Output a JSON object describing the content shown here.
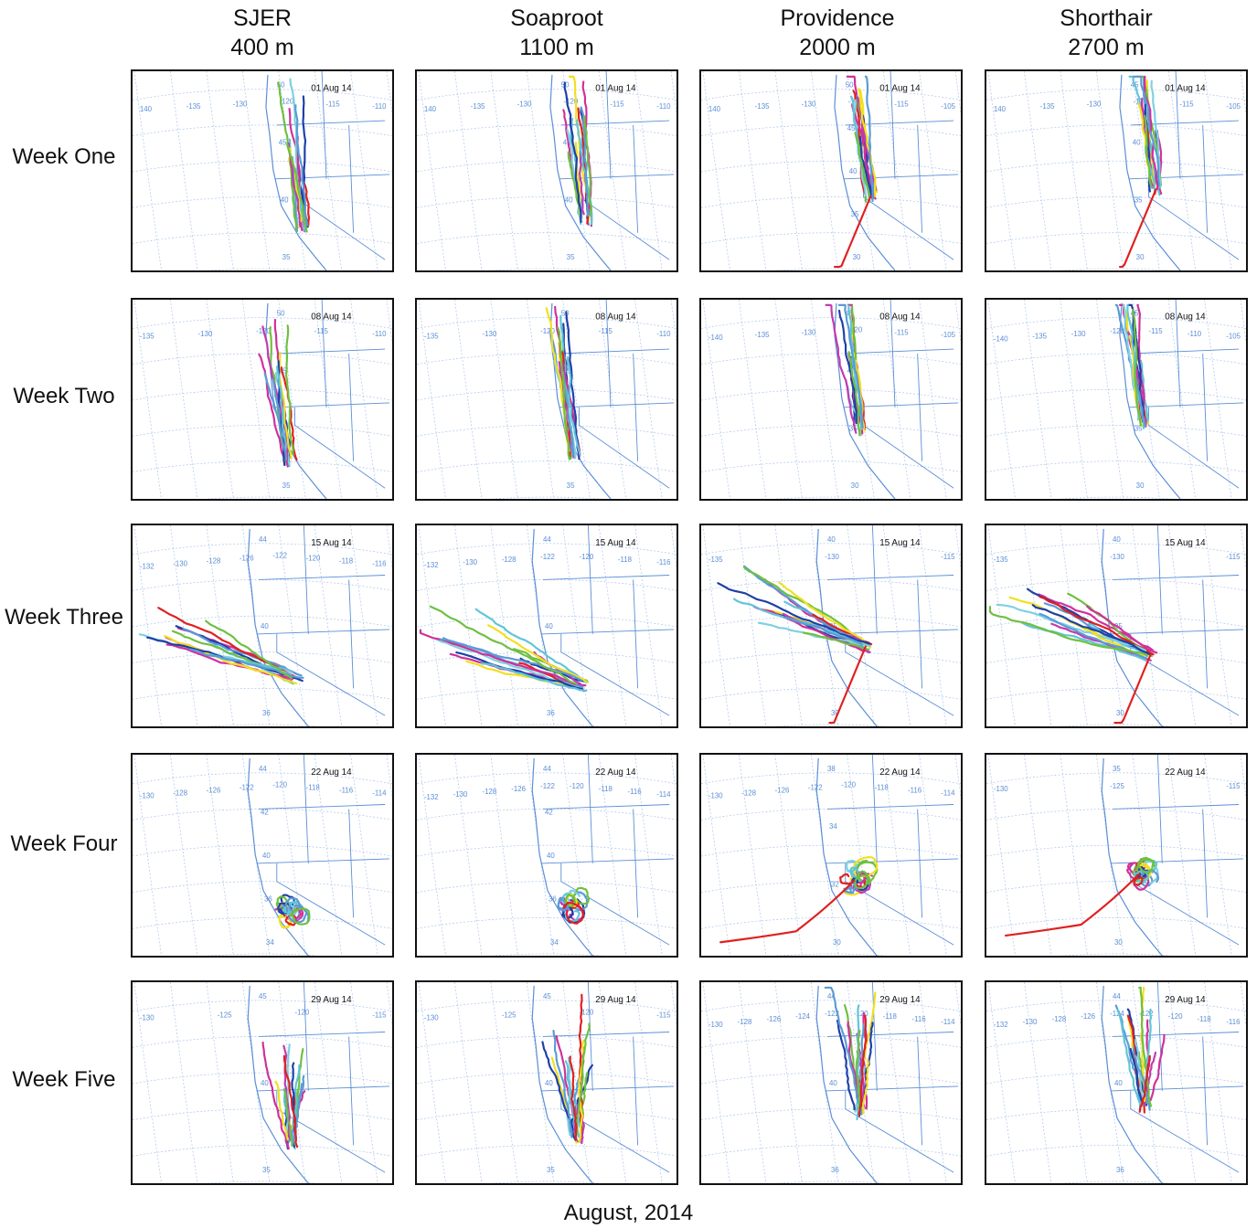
{
  "sites": [
    {
      "name": "SJER",
      "elevation": "400 m"
    },
    {
      "name": "Soaproot",
      "elevation": "1100 m"
    },
    {
      "name": "Providence",
      "elevation": "2000 m"
    },
    {
      "name": "Shorthair",
      "elevation": "2700 m"
    }
  ],
  "weeks": [
    {
      "label": "Week One",
      "date": "01 Aug 14"
    },
    {
      "label": "Week Two",
      "date": "08 Aug 14"
    },
    {
      "label": "Week Three",
      "date": "15 Aug 14"
    },
    {
      "label": "Week Four",
      "date": "22 Aug 14"
    },
    {
      "label": "Week Five",
      "date": "29 Aug 14"
    }
  ],
  "footer": "August, 2014",
  "colors": {
    "grid": "#a9c3ea",
    "coast": "#5b8ed6",
    "trajectories": [
      "#d0309a",
      "#f0e020",
      "#1e3fa8",
      "#60c4d8",
      "#5b9bd5",
      "#6ec040",
      "#e02020",
      "#7fd0e0",
      "#c23ab0"
    ]
  },
  "panel_labels": [
    [
      "01 Aug 14",
      "01 Aug 14",
      "01 Aug 14",
      "01 Aug 14"
    ],
    [
      "08 Aug 14",
      "08 Aug 14",
      "08 Aug 14",
      "08 Aug 14"
    ],
    [
      "15 Aug 14",
      "15 Aug 14",
      "15 Aug 14",
      "15 Aug 14"
    ],
    [
      "22 Aug 14",
      "22 Aug 14",
      "22 Aug 14",
      "22 Aug 14"
    ],
    [
      "29 Aug 14",
      "29 Aug 14",
      "29 Aug 14",
      "29 Aug 14"
    ]
  ],
  "tick_labels": [
    [
      [
        "140",
        "-135",
        "-130",
        "-120",
        "-115",
        "-110",
        "50",
        "45",
        "40",
        "35"
      ],
      [
        "140",
        "-135",
        "-130",
        "-120",
        "-115",
        "-110",
        "50",
        "45",
        "40",
        "35"
      ],
      [
        "140",
        "-135",
        "-130",
        "-120",
        "-115",
        "-105",
        "50",
        "45",
        "40",
        "35",
        "30"
      ],
      [
        "140",
        "-135",
        "-130",
        "-120",
        "-115",
        "-105",
        "45",
        "40",
        "35",
        "30"
      ]
    ],
    [
      [
        "-135",
        "-130",
        "-120",
        "-115",
        "-110",
        "50",
        "45",
        "40",
        "35"
      ],
      [
        "-135",
        "-130",
        "-120",
        "-115",
        "-110",
        "50",
        "45",
        "40",
        "35"
      ],
      [
        "-140",
        "-135",
        "-130",
        "-120",
        "-115",
        "-105",
        "45",
        "40",
        "35",
        "30"
      ],
      [
        "-140",
        "-135",
        "-130",
        "-120",
        "-115",
        "-110",
        "-105",
        "45",
        "40",
        "35",
        "30"
      ]
    ],
    [
      [
        "44",
        "-132",
        "-130",
        "-128",
        "-126",
        "-122",
        "-120",
        "-118",
        "-116",
        "40",
        "36"
      ],
      [
        "44",
        "-132",
        "-130",
        "-128",
        "-122",
        "-120",
        "-118",
        "-116",
        "40",
        "36"
      ],
      [
        "-135",
        "-130",
        "-115",
        "40",
        "35",
        "30"
      ],
      [
        "-135",
        "-130",
        "-115",
        "40",
        "35",
        "30"
      ]
    ],
    [
      [
        "44",
        "-130",
        "-128",
        "-126",
        "-122",
        "-120",
        "-118",
        "-116",
        "-114",
        "42",
        "40",
        "36",
        "34"
      ],
      [
        "44",
        "-132",
        "-130",
        "-128",
        "-126",
        "-122",
        "-120",
        "-118",
        "-116",
        "-114",
        "42",
        "40",
        "36",
        "34"
      ],
      [
        "-130",
        "-128",
        "-126",
        "-122",
        "-120",
        "-118",
        "-116",
        "-114",
        "38",
        "34",
        "32",
        "30"
      ],
      [
        "-130",
        "-125",
        "-115",
        "35",
        "30"
      ]
    ],
    [
      [
        "-130",
        "-125",
        "-120",
        "-115",
        "45",
        "40",
        "35"
      ],
      [
        "-130",
        "-125",
        "-120",
        "-115",
        "45",
        "40",
        "35"
      ],
      [
        "44",
        "-130",
        "-128",
        "-126",
        "-124",
        "-122",
        "-120",
        "-118",
        "-116",
        "-114",
        "40",
        "36"
      ],
      [
        "44",
        "-132",
        "-130",
        "-128",
        "-126",
        "-124",
        "-122",
        "-120",
        "-118",
        "-116",
        "40",
        "36"
      ]
    ]
  ]
}
